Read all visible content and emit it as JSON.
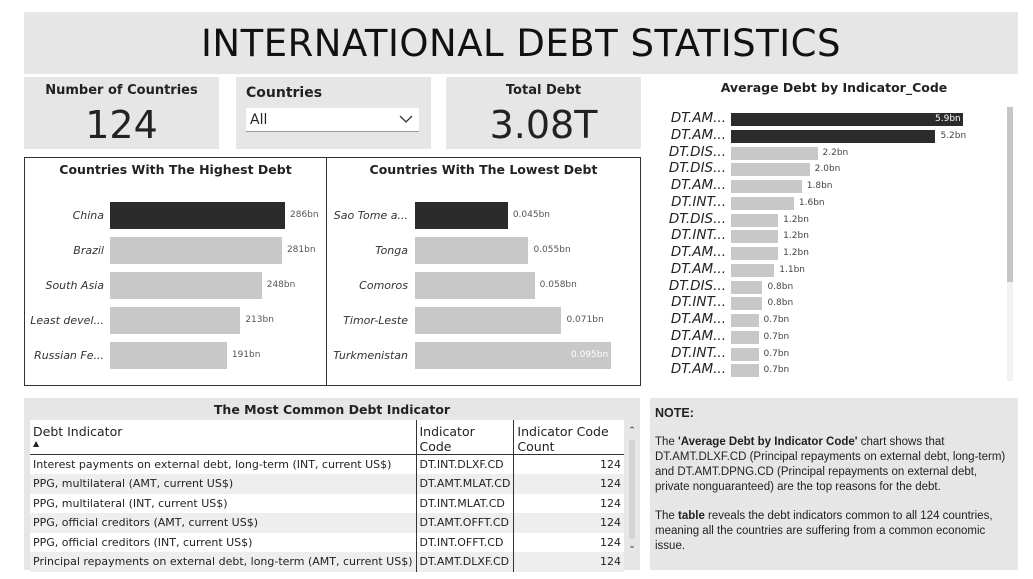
{
  "dashboard": {
    "title": "INTERNATIONAL DEBT STATISTICS"
  },
  "kpis": {
    "countries": {
      "label": "Number of Countries",
      "value": "124"
    },
    "total_debt": {
      "label": "Total Debt",
      "value": "3.08T"
    }
  },
  "slicer": {
    "title": "Countries",
    "selected": "All"
  },
  "colors": {
    "highlight": "#2b2b2b",
    "bar": "#c8c8c8",
    "card_bg": "#e6e6e6"
  },
  "chart_data": [
    {
      "type": "bar",
      "orientation": "horizontal",
      "title": "Countries With The Highest Debt",
      "categories": [
        "China",
        "Brazil",
        "South Asia",
        "Least devel...",
        "Russian Fe..."
      ],
      "values": [
        286,
        281,
        248,
        213,
        191
      ],
      "value_labels": [
        "286bn",
        "281bn",
        "248bn",
        "213bn",
        "191bn"
      ],
      "unit": "bn",
      "max": 286
    },
    {
      "type": "bar",
      "orientation": "horizontal",
      "title": "Countries With The Lowest Debt",
      "categories": [
        "Sao Tome a...",
        "Tonga",
        "Comoros",
        "Timor-Leste",
        "Turkmenistan"
      ],
      "values": [
        0.045,
        0.055,
        0.058,
        0.071,
        0.095
      ],
      "value_labels": [
        "0.045bn",
        "0.055bn",
        "0.058bn",
        "0.071bn",
        "0.095bn"
      ],
      "unit": "bn",
      "max": 0.095
    },
    {
      "type": "bar",
      "orientation": "horizontal",
      "title": "Average Debt by Indicator_Code",
      "categories": [
        "DT.AM...",
        "DT.AM...",
        "DT.DIS...",
        "DT.DIS...",
        "DT.AM...",
        "DT.INT...",
        "DT.DIS...",
        "DT.INT...",
        "DT.AM...",
        "DT.AM...",
        "DT.DIS...",
        "DT.INT...",
        "DT.AM...",
        "DT.AM...",
        "DT.INT...",
        "DT.AM..."
      ],
      "values": [
        5.9,
        5.2,
        2.2,
        2.0,
        1.8,
        1.6,
        1.2,
        1.2,
        1.2,
        1.1,
        0.8,
        0.8,
        0.7,
        0.7,
        0.7,
        0.7
      ],
      "value_labels": [
        "5.9bn",
        "5.2bn",
        "2.2bn",
        "2.0bn",
        "1.8bn",
        "1.6bn",
        "1.2bn",
        "1.2bn",
        "1.2bn",
        "1.1bn",
        "0.8bn",
        "0.8bn",
        "0.7bn",
        "0.7bn",
        "0.7bn",
        "0.7bn"
      ],
      "unit": "bn",
      "max": 5.9
    }
  ],
  "table": {
    "title": "The Most Common Debt Indicator",
    "columns": [
      "Debt Indicator",
      "Indicator Code",
      "Indicator Code Count"
    ],
    "rows": [
      [
        "Interest payments on external debt, long-term (INT, current US$)",
        "DT.INT.DLXF.CD",
        "124"
      ],
      [
        "PPG, multilateral (AMT, current US$)",
        "DT.AMT.MLAT.CD",
        "124"
      ],
      [
        "PPG, multilateral (INT, current US$)",
        "DT.INT.MLAT.CD",
        "124"
      ],
      [
        "PPG, official creditors (AMT, current US$)",
        "DT.AMT.OFFT.CD",
        "124"
      ],
      [
        "PPG, official creditors (INT, current US$)",
        "DT.INT.OFFT.CD",
        "124"
      ],
      [
        "Principal repayments on external debt, long-term (AMT, current US$)",
        "DT.AMT.DLXF.CD",
        "124"
      ]
    ]
  },
  "note": {
    "title": "NOTE:",
    "p1_pre": "The ",
    "p1_bold": "'Average Debt by Indicator Code'",
    "p1_post": " chart shows that DT.AMT.DLXF.CD (Principal repayments on external debt, long-term) and DT.AMT.DPNG.CD (Principal repayments on external debt, private nonguaranteed) are the top reasons for the debt.",
    "p2_pre": "The ",
    "p2_bold": "table",
    "p2_post": " reveals the debt indicators common to all 124 countries, meaning all the countries are suffering from a common economic issue."
  }
}
